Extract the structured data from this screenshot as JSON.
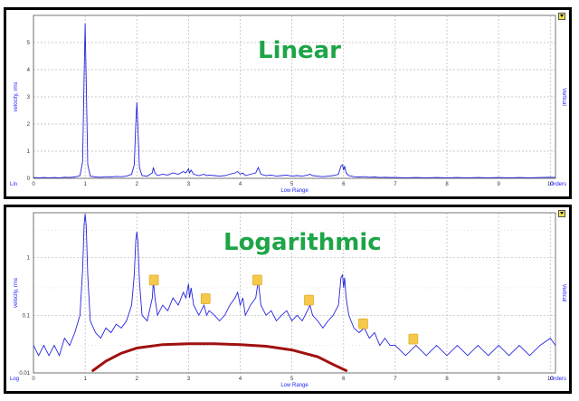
{
  "chart_data": [
    {
      "type": "line",
      "title": "Linear",
      "scale": "linear",
      "ylabel": "velocity, rms",
      "right_label": "Vertical",
      "xlabel": "Low Range",
      "corner_left": "Lin",
      "corner_right": "Orders",
      "xlim": [
        0,
        10.1
      ],
      "ylim": [
        0,
        6
      ],
      "xticks": [
        "0",
        "1",
        "2",
        "3",
        "4",
        "5",
        "6",
        "7",
        "8",
        "9",
        "10"
      ],
      "yticks": [
        "0",
        "1",
        "2",
        "3",
        "4",
        "5"
      ],
      "grid": true,
      "color": "#2424e0",
      "series": [
        {
          "x": [
            0,
            0.1,
            0.2,
            0.3,
            0.4,
            0.5,
            0.6,
            0.7,
            0.8,
            0.9,
            0.95,
            0.98,
            1.0,
            1.02,
            1.05,
            1.1,
            1.2,
            1.3,
            1.4,
            1.5,
            1.6,
            1.7,
            1.8,
            1.9,
            1.95,
            1.98,
            2.0,
            2.02,
            2.05,
            2.1,
            2.2,
            2.3,
            2.32,
            2.35,
            2.4,
            2.5,
            2.6,
            2.7,
            2.8,
            2.9,
            2.95,
            3.0,
            3.02,
            3.05,
            3.1,
            3.2,
            3.3,
            3.35,
            3.4,
            3.5,
            3.6,
            3.7,
            3.8,
            3.9,
            3.95,
            4.0,
            4.05,
            4.1,
            4.2,
            4.3,
            4.35,
            4.4,
            4.5,
            4.6,
            4.7,
            4.8,
            4.9,
            5.0,
            5.1,
            5.2,
            5.3,
            5.35,
            5.4,
            5.5,
            5.6,
            5.7,
            5.8,
            5.9,
            5.95,
            5.98,
            6.0,
            6.02,
            6.05,
            6.1,
            6.2,
            6.3,
            6.4,
            6.5,
            6.6,
            6.7,
            6.8,
            6.9,
            7.0,
            7.2,
            7.4,
            7.6,
            7.8,
            8.0,
            8.2,
            8.4,
            8.6,
            8.8,
            9.0,
            9.2,
            9.4,
            9.6,
            9.8,
            10.0,
            10.1
          ],
          "y": [
            0.03,
            0.02,
            0.03,
            0.02,
            0.03,
            0.02,
            0.04,
            0.03,
            0.05,
            0.1,
            0.6,
            3.8,
            5.7,
            3.6,
            0.5,
            0.08,
            0.05,
            0.04,
            0.06,
            0.05,
            0.07,
            0.06,
            0.08,
            0.15,
            0.5,
            2.0,
            2.8,
            1.9,
            0.4,
            0.1,
            0.08,
            0.2,
            0.4,
            0.2,
            0.1,
            0.15,
            0.12,
            0.2,
            0.15,
            0.25,
            0.2,
            0.35,
            0.2,
            0.3,
            0.15,
            0.1,
            0.15,
            0.1,
            0.12,
            0.1,
            0.08,
            0.1,
            0.15,
            0.2,
            0.25,
            0.15,
            0.2,
            0.1,
            0.15,
            0.2,
            0.4,
            0.15,
            0.1,
            0.12,
            0.08,
            0.1,
            0.12,
            0.08,
            0.1,
            0.08,
            0.12,
            0.15,
            0.1,
            0.08,
            0.06,
            0.08,
            0.1,
            0.15,
            0.45,
            0.5,
            0.3,
            0.45,
            0.2,
            0.1,
            0.06,
            0.05,
            0.06,
            0.04,
            0.05,
            0.03,
            0.04,
            0.03,
            0.03,
            0.02,
            0.03,
            0.02,
            0.03,
            0.02,
            0.03,
            0.02,
            0.03,
            0.02,
            0.03,
            0.02,
            0.03,
            0.02,
            0.03,
            0.04,
            0.03
          ]
        }
      ]
    },
    {
      "type": "line",
      "title": "Logarithmic",
      "scale": "log",
      "ylabel": "velocity, rms",
      "right_label": "Vertical",
      "xlabel": "Low Range",
      "corner_left": "Log",
      "corner_right": "Orders",
      "xlim": [
        0,
        10.1
      ],
      "ylim": [
        0.01,
        6
      ],
      "xticks": [
        "0",
        "1",
        "2",
        "3",
        "4",
        "5",
        "6",
        "7",
        "8",
        "9",
        "10"
      ],
      "yticks": [
        "0.01",
        "0.1",
        "1"
      ],
      "grid": true,
      "color": "#2424e0",
      "series": [
        {
          "x": [
            0,
            0.1,
            0.2,
            0.3,
            0.4,
            0.5,
            0.6,
            0.7,
            0.8,
            0.9,
            0.95,
            0.98,
            1.0,
            1.02,
            1.05,
            1.1,
            1.2,
            1.3,
            1.4,
            1.5,
            1.6,
            1.7,
            1.8,
            1.9,
            1.95,
            1.98,
            2.0,
            2.02,
            2.05,
            2.1,
            2.2,
            2.3,
            2.32,
            2.35,
            2.4,
            2.5,
            2.6,
            2.7,
            2.8,
            2.9,
            2.95,
            3.0,
            3.02,
            3.05,
            3.1,
            3.2,
            3.3,
            3.35,
            3.4,
            3.5,
            3.6,
            3.7,
            3.8,
            3.9,
            3.95,
            4.0,
            4.05,
            4.1,
            4.2,
            4.3,
            4.35,
            4.4,
            4.5,
            4.6,
            4.7,
            4.8,
            4.9,
            5.0,
            5.1,
            5.2,
            5.3,
            5.35,
            5.4,
            5.5,
            5.6,
            5.7,
            5.8,
            5.9,
            5.95,
            5.98,
            6.0,
            6.02,
            6.05,
            6.1,
            6.2,
            6.3,
            6.4,
            6.5,
            6.6,
            6.7,
            6.8,
            6.9,
            7.0,
            7.2,
            7.4,
            7.6,
            7.8,
            8.0,
            8.2,
            8.4,
            8.6,
            8.8,
            9.0,
            9.2,
            9.4,
            9.6,
            9.8,
            10.0,
            10.1
          ],
          "y": [
            0.03,
            0.02,
            0.03,
            0.02,
            0.03,
            0.02,
            0.04,
            0.03,
            0.05,
            0.1,
            0.6,
            3.8,
            5.7,
            3.6,
            0.5,
            0.08,
            0.05,
            0.04,
            0.06,
            0.05,
            0.07,
            0.06,
            0.08,
            0.15,
            0.5,
            2.0,
            2.8,
            1.9,
            0.4,
            0.1,
            0.08,
            0.2,
            0.4,
            0.2,
            0.1,
            0.15,
            0.12,
            0.2,
            0.15,
            0.25,
            0.2,
            0.35,
            0.2,
            0.3,
            0.15,
            0.1,
            0.15,
            0.1,
            0.12,
            0.1,
            0.08,
            0.1,
            0.15,
            0.2,
            0.25,
            0.15,
            0.2,
            0.1,
            0.15,
            0.2,
            0.4,
            0.15,
            0.1,
            0.12,
            0.08,
            0.1,
            0.12,
            0.08,
            0.1,
            0.08,
            0.12,
            0.15,
            0.1,
            0.08,
            0.06,
            0.08,
            0.1,
            0.15,
            0.45,
            0.5,
            0.3,
            0.45,
            0.2,
            0.1,
            0.06,
            0.05,
            0.06,
            0.04,
            0.05,
            0.03,
            0.04,
            0.03,
            0.03,
            0.02,
            0.03,
            0.02,
            0.03,
            0.02,
            0.03,
            0.02,
            0.03,
            0.02,
            0.03,
            0.02,
            0.03,
            0.02,
            0.03,
            0.04,
            0.03
          ]
        }
      ],
      "markers": [
        {
          "x": 2.33,
          "y": 0.4
        },
        {
          "x": 3.33,
          "y": 0.19
        },
        {
          "x": 4.33,
          "y": 0.4
        },
        {
          "x": 5.33,
          "y": 0.18
        },
        {
          "x": 6.38,
          "y": 0.07
        },
        {
          "x": 7.35,
          "y": 0.038
        }
      ],
      "marker_color": "#f6c94a",
      "noise_floor_curve": {
        "color": "#a01010",
        "x": [
          1.15,
          1.4,
          1.7,
          2.0,
          2.5,
          3.0,
          3.5,
          4.0,
          4.5,
          5.0,
          5.5,
          5.8,
          6.05
        ],
        "y": [
          0.011,
          0.016,
          0.022,
          0.027,
          0.031,
          0.032,
          0.032,
          0.031,
          0.029,
          0.025,
          0.019,
          0.014,
          0.011
        ]
      }
    }
  ]
}
